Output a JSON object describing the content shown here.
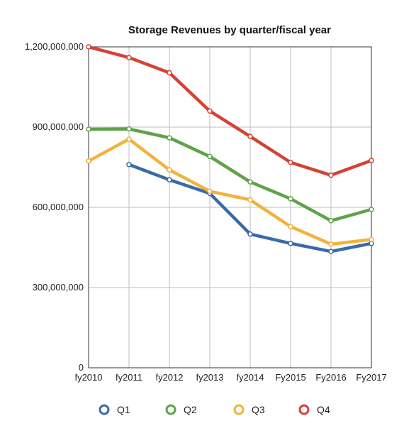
{
  "chart_data": {
    "type": "line",
    "title": "Storage Revenues by quarter/fiscal year",
    "xlabel": "",
    "ylabel": "",
    "categories": [
      "fy2010",
      "fy2011",
      "fy2012",
      "fy2013",
      "fy2014",
      "Fy2015",
      "Fy2016",
      "Fy2017"
    ],
    "y_ticks": [
      "0",
      "300,000,000",
      "600,000,000",
      "900,000,000",
      "1,200,000,000"
    ],
    "y_tick_values": [
      0,
      300000000,
      600000000,
      900000000,
      1200000000
    ],
    "ylim": [
      0,
      1200000000
    ],
    "grid": true,
    "legend_position": "bottom",
    "series": [
      {
        "name": "Q1",
        "color": "#3a6aa8",
        "values": [
          null,
          760000000,
          703000000,
          652000000,
          500000000,
          465000000,
          435000000,
          465000000
        ]
      },
      {
        "name": "Q2",
        "color": "#5ea24a",
        "values": [
          892000000,
          893000000,
          860000000,
          790000000,
          695000000,
          632000000,
          550000000,
          592000000
        ]
      },
      {
        "name": "Q3",
        "color": "#f1b33b",
        "values": [
          773000000,
          855000000,
          740000000,
          660000000,
          628000000,
          528000000,
          462000000,
          480000000
        ]
      },
      {
        "name": "Q4",
        "color": "#d64136",
        "values": [
          1200000000,
          1160000000,
          1103000000,
          960000000,
          865000000,
          768000000,
          720000000,
          775000000
        ]
      }
    ]
  }
}
